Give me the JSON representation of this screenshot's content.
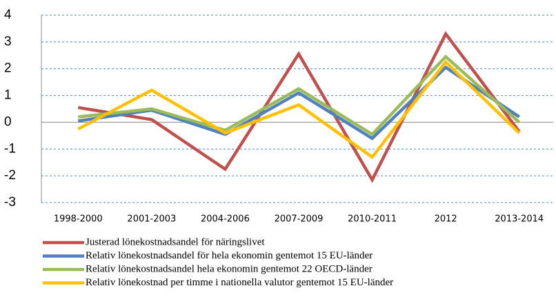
{
  "chart_data": {
    "type": "line",
    "categories": [
      "1998-2000",
      "2001-2003",
      "2004-2006",
      "2007-2009",
      "2010-2011",
      "2012",
      "2013-2014"
    ],
    "series": [
      {
        "name": "Justerad lönekostnadsandel för näringslivet",
        "color": "#c0504d",
        "values": [
          0.55,
          0.1,
          -1.75,
          2.55,
          -2.15,
          3.3,
          -0.35
        ]
      },
      {
        "name": "Relativ lönekostnadsandel för hela ekonomin gentemot 15 EU-länder",
        "color": "#4f81bd",
        "values": [
          0.05,
          0.45,
          -0.45,
          1.1,
          -0.6,
          2.05,
          0.2
        ]
      },
      {
        "name": "Relativ lönekostnadsandel hela ekonomin gentemot 22 OECD-länder",
        "color": "#9bbb59",
        "values": [
          0.2,
          0.5,
          -0.3,
          1.25,
          -0.45,
          2.45,
          0.0
        ]
      },
      {
        "name": "Relativ lönekostnad per timme i nationella valutor  gentemot  15 EU-länder",
        "color": "#ffc000",
        "values": [
          -0.25,
          1.2,
          -0.4,
          0.65,
          -1.3,
          2.25,
          -0.4
        ]
      }
    ],
    "ylim": [
      -3,
      4
    ],
    "yticks": [
      -3,
      -2,
      -1,
      0,
      1,
      2,
      3,
      4
    ],
    "grid": true,
    "legend": "bottom"
  }
}
